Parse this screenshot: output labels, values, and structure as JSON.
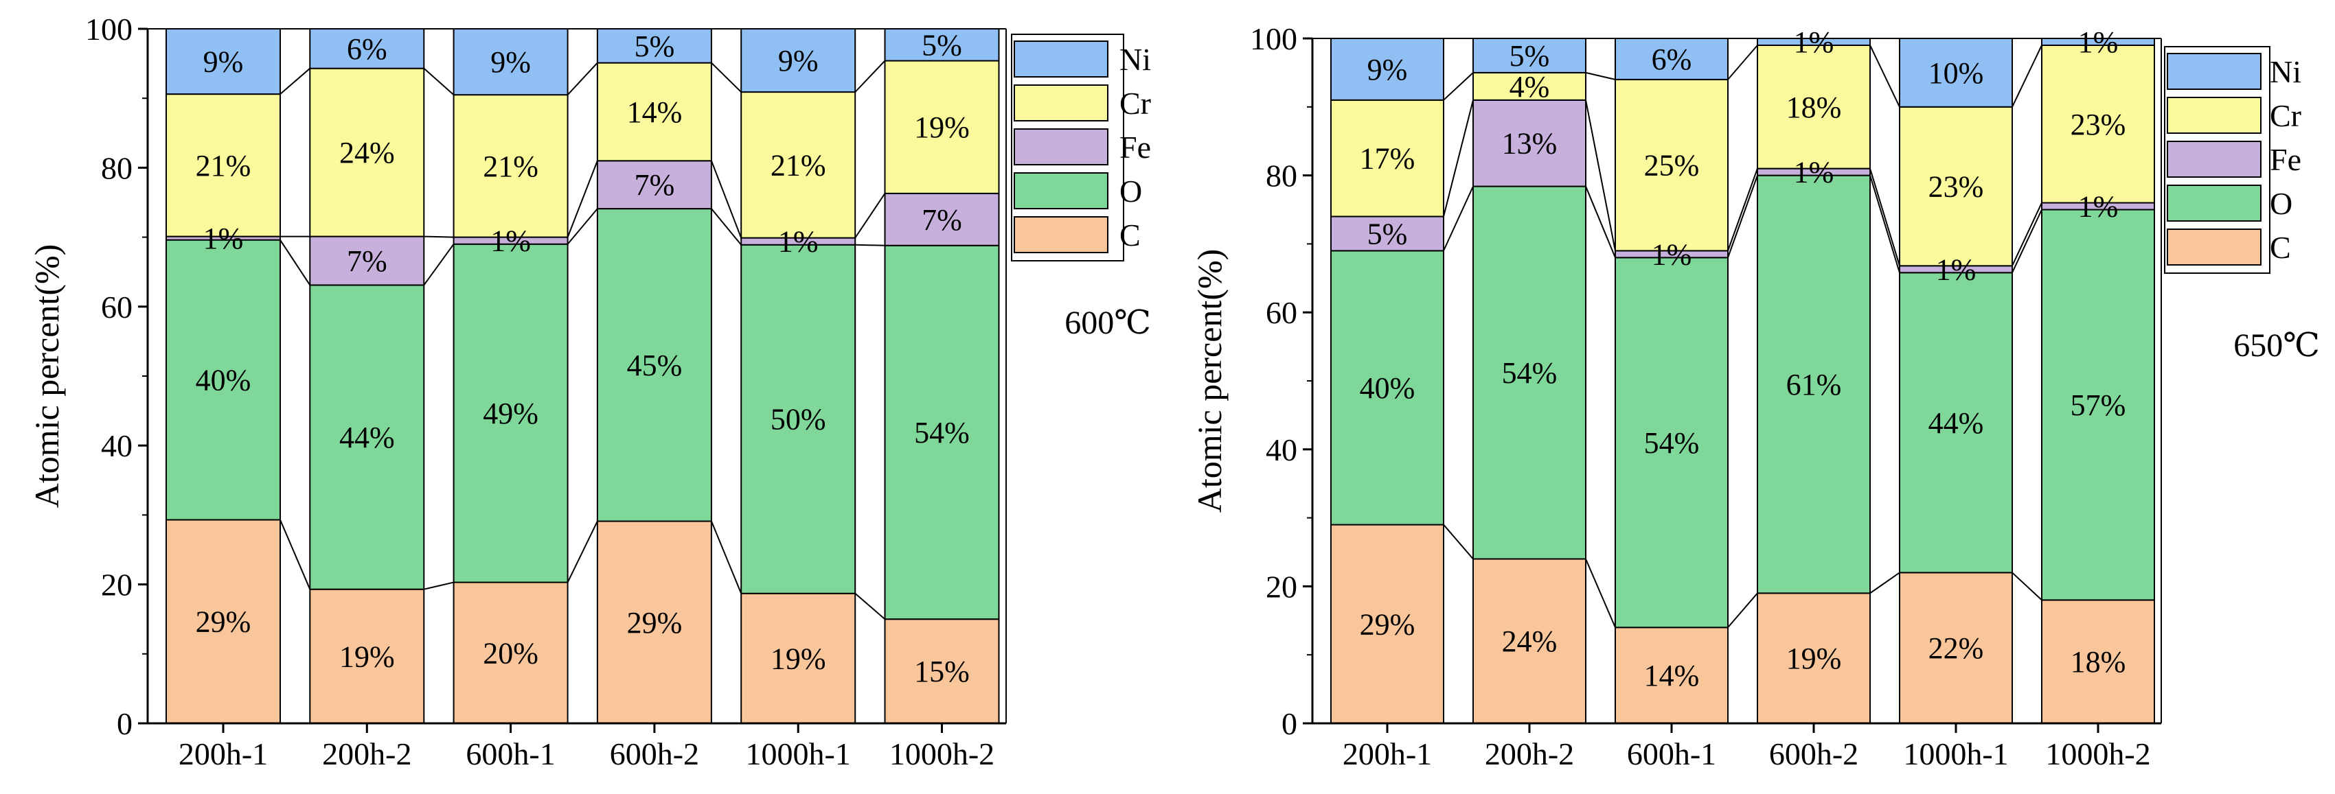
{
  "colors": {
    "C": "#F9C59A",
    "O": "#7FD89A",
    "Fe": "#C7B0DB",
    "Cr": "#FAFA9D",
    "Ni": "#90BFF3"
  },
  "chart_data": [
    {
      "type": "bar",
      "stacked": true,
      "temperature": "600℃",
      "ylabel": "Atomic percent(%)",
      "xlabel": "",
      "ylim": [
        0,
        100
      ],
      "yticks": [
        "0",
        "20",
        "40",
        "60",
        "80",
        "100"
      ],
      "categories": [
        "200h-1",
        "200h-2",
        "600h-1",
        "600h-2",
        "1000h-1",
        "1000h-2"
      ],
      "legend": [
        "Ni",
        "Cr",
        "Fe",
        "O",
        "C"
      ],
      "legend_position": "top-right outside",
      "series": [
        {
          "name": "C",
          "values": [
            29.3,
            19.3,
            20.3,
            29.1,
            18.7,
            15.0
          ],
          "labels": [
            "29%",
            "19%",
            "20%",
            "29%",
            "19%",
            "15%"
          ]
        },
        {
          "name": "O",
          "values": [
            40.3,
            43.8,
            48.7,
            45.0,
            50.2,
            53.8
          ],
          "labels": [
            "40%",
            "44%",
            "49%",
            "45%",
            "50%",
            "54%"
          ]
        },
        {
          "name": "Fe",
          "values": [
            0.5,
            7.0,
            1.0,
            6.9,
            1.0,
            7.5
          ],
          "labels": [
            "1%",
            "7%",
            "1%",
            "7%",
            "1%",
            "7%"
          ]
        },
        {
          "name": "Cr",
          "values": [
            20.5,
            24.2,
            20.5,
            14.1,
            21.0,
            19.1
          ],
          "labels": [
            "21%",
            "24%",
            "21%",
            "14%",
            "21%",
            "19%"
          ]
        },
        {
          "name": "Ni",
          "values": [
            9.4,
            5.7,
            9.5,
            4.9,
            9.1,
            4.6
          ],
          "labels": [
            "9%",
            "6%",
            "9%",
            "5%",
            "9%",
            "5%"
          ]
        }
      ]
    },
    {
      "type": "bar",
      "stacked": true,
      "temperature": "650℃",
      "ylabel": "Atomic percent(%)",
      "xlabel": "",
      "ylim": [
        0,
        100
      ],
      "yticks": [
        "0",
        "20",
        "40",
        "60",
        "80",
        "100"
      ],
      "categories": [
        "200h-1",
        "200h-2",
        "600h-1",
        "600h-2",
        "1000h-1",
        "1000h-2"
      ],
      "legend": [
        "Ni",
        "Cr",
        "Fe",
        "O",
        "C"
      ],
      "legend_position": "top-right outside",
      "series": [
        {
          "name": "C",
          "values": [
            29.0,
            24.0,
            14.0,
            19.0,
            22.0,
            18.0
          ],
          "labels": [
            "29%",
            "24%",
            "14%",
            "19%",
            "22%",
            "18%"
          ]
        },
        {
          "name": "O",
          "values": [
            40.0,
            54.4,
            54.0,
            61.0,
            43.8,
            57.0
          ],
          "labels": [
            "40%",
            "54%",
            "54%",
            "61%",
            "44%",
            "57%"
          ]
        },
        {
          "name": "Fe",
          "values": [
            5.0,
            12.6,
            1.0,
            1.0,
            1.0,
            1.0
          ],
          "labels": [
            "5%",
            "13%",
            "1%",
            "1%",
            "1%",
            "1%"
          ]
        },
        {
          "name": "Cr",
          "values": [
            17.0,
            4.0,
            25.0,
            18.0,
            23.2,
            23.0
          ],
          "labels": [
            "17%",
            "4%",
            "25%",
            "18%",
            "23%",
            "23%"
          ]
        },
        {
          "name": "Ni",
          "values": [
            9.0,
            5.0,
            6.0,
            1.0,
            10.0,
            1.0
          ],
          "labels": [
            "9%",
            "5%",
            "6%",
            "1%",
            "10%",
            "1%"
          ]
        }
      ]
    }
  ]
}
